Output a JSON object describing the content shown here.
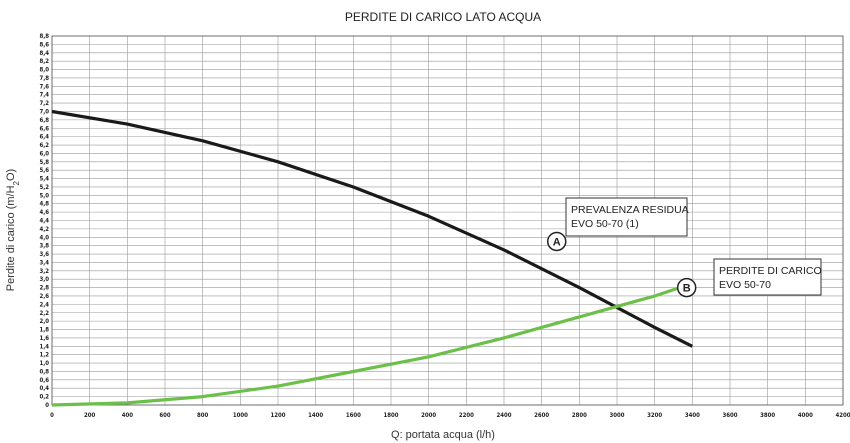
{
  "chart_data": {
    "type": "line",
    "title": "PERDITE DI CARICO LATO ACQUA",
    "xlabel": "Q: portata acqua (l/h)",
    "ylabel_parts": [
      "Perdite di carico (m/H",
      "2",
      "O)"
    ],
    "xlim": [
      0,
      4200
    ],
    "ylim": [
      0,
      8.8
    ],
    "x_ticks": [
      "0",
      "200",
      "400",
      "600",
      "800",
      "1000",
      "1200",
      "1400",
      "1600",
      "1800",
      "2000",
      "2200",
      "2400",
      "2600",
      "2800",
      "3000",
      "3200",
      "3400",
      "3600",
      "3800",
      "4000",
      "4200"
    ],
    "y_ticks": [
      "0",
      "0,2",
      "0,4",
      "0,6",
      "0,8",
      "1,0",
      "1,2",
      "1,4",
      "1,6",
      "1,8",
      "2,0",
      "2,2",
      "2,4",
      "2,6",
      "2,8",
      "3,0",
      "3,2",
      "3,4",
      "3,6",
      "3,8",
      "4,0",
      "4,2",
      "4,4",
      "4,6",
      "4,8",
      "5,0",
      "5,2",
      "5,4",
      "5,6",
      "5,8",
      "6,0",
      "6,2",
      "6,4",
      "6,6",
      "6,8",
      "7,0",
      "7,2",
      "7,4",
      "7,6",
      "7,8",
      "8,0",
      "8,2",
      "8,4",
      "8,6",
      "8,8"
    ],
    "grid": true,
    "series": [
      {
        "id": "A",
        "color": "#1a1a1a",
        "x": [
          0,
          400,
          800,
          1200,
          1600,
          2000,
          2400,
          2800,
          3200,
          3400
        ],
        "y": [
          7.0,
          6.7,
          6.3,
          5.8,
          5.2,
          4.5,
          3.7,
          2.8,
          1.85,
          1.4
        ]
      },
      {
        "id": "B",
        "color": "#6cc04a",
        "x": [
          0,
          400,
          800,
          1200,
          1600,
          2000,
          2400,
          2800,
          3200,
          3400
        ],
        "y": [
          0,
          0.05,
          0.2,
          0.45,
          0.8,
          1.15,
          1.6,
          2.1,
          2.6,
          2.9
        ]
      }
    ],
    "annotations": [
      {
        "marker": "A",
        "lines": [
          "PREVALENZA RESIDUA",
          "EVO 50-70 (1)"
        ],
        "marker_x": 2680,
        "marker_y": 3.9
      },
      {
        "marker": "B",
        "lines": [
          "PERDITE DI CARICO",
          "EVO 50-70"
        ],
        "marker_x": 3370,
        "marker_y": 2.8
      }
    ]
  }
}
